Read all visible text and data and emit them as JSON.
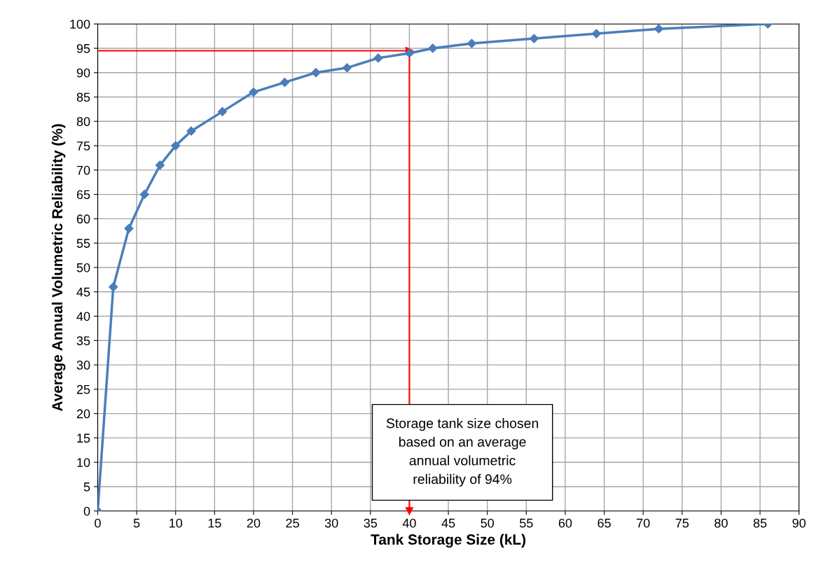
{
  "chart_data": {
    "type": "line",
    "xlabel": "Tank Storage Size (kL)",
    "ylabel": "Average Annual Volumetric Reliability (%)",
    "x": [
      0,
      2,
      4,
      6,
      8,
      10,
      12,
      16,
      20,
      24,
      28,
      32,
      36,
      40,
      43,
      48,
      56,
      64,
      72,
      86
    ],
    "series": [
      {
        "color": "#4a7ebb",
        "values": [
          0,
          46,
          58,
          65,
          71,
          75,
          78,
          82,
          86,
          88,
          90,
          91,
          93,
          94,
          95,
          96,
          97,
          98,
          99,
          100
        ]
      }
    ],
    "xlim": [
      0,
      90
    ],
    "xticks": [
      0,
      5,
      10,
      15,
      20,
      25,
      30,
      35,
      40,
      45,
      50,
      55,
      60,
      65,
      70,
      75,
      80,
      85,
      90
    ],
    "ylim": [
      0,
      100
    ],
    "yticks": [
      0,
      5,
      10,
      15,
      20,
      25,
      30,
      35,
      40,
      45,
      50,
      55,
      60,
      65,
      70,
      75,
      80,
      85,
      90,
      95,
      100
    ],
    "grid": true,
    "marker": "diamond",
    "line_style": "solid",
    "legend": false,
    "ref_lines": [
      {
        "axis": "y",
        "value": 94.5,
        "color": "#ff0000"
      },
      {
        "axis": "x",
        "value": 40,
        "color": "#ff0000"
      }
    ],
    "annotations": [
      "Storage tank size chosen\nbased on an average\nannual volumetric\nreliability of 94%"
    ]
  }
}
